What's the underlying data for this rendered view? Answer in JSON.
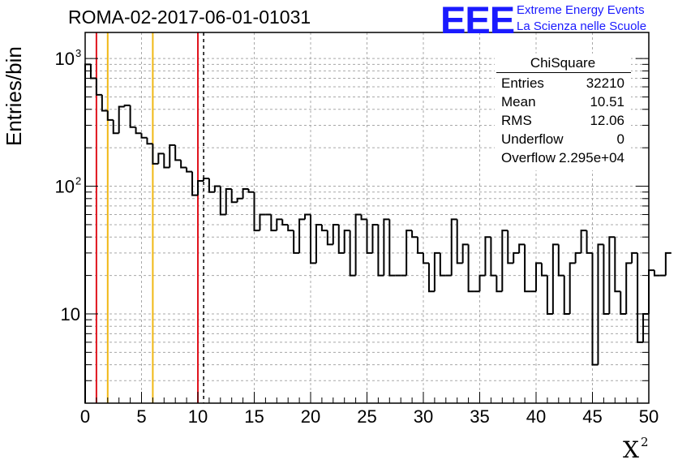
{
  "page_title": "ROMA-02-2017-06-01-01031",
  "logo": {
    "mark": "EEE",
    "line1": "Extreme Energy Events",
    "line2": "La Scienza nelle Scuole",
    "color": "#1a1aff"
  },
  "stats_box": {
    "name": "ChiSquare",
    "rows": [
      {
        "label": "Entries",
        "value": "32210"
      },
      {
        "label": "Mean",
        "value": "10.51"
      },
      {
        "label": "RMS",
        "value": "12.06"
      },
      {
        "label": "Underflow",
        "value": "0"
      },
      {
        "label": "Overflow",
        "value": "2.295e+04"
      }
    ]
  },
  "chart_data": {
    "type": "histogram",
    "title": "ROMA-02-2017-06-01-01031",
    "xlabel": "X",
    "xlabel_superscript": "2",
    "ylabel": "Entries/bin",
    "xlim": [
      0,
      50
    ],
    "ylim": [
      2,
      1600
    ],
    "yscale": "log",
    "grid": true,
    "bin_width": 0.5,
    "x_ticks": [
      "0",
      "5",
      "10",
      "15",
      "20",
      "25",
      "30",
      "35",
      "40",
      "45",
      "50"
    ],
    "y_ticks": [
      {
        "label": "10",
        "exp": "",
        "value": 10
      },
      {
        "label": "10",
        "exp": "2",
        "value": 100
      },
      {
        "label": "10",
        "exp": "3",
        "value": 1000
      }
    ],
    "values": [
      900,
      700,
      520,
      390,
      330,
      260,
      420,
      430,
      290,
      260,
      240,
      215,
      150,
      180,
      140,
      210,
      160,
      140,
      130,
      85,
      110,
      115,
      90,
      100,
      60,
      95,
      75,
      80,
      95,
      90,
      45,
      60,
      60,
      45,
      55,
      50,
      45,
      30,
      55,
      60,
      25,
      50,
      45,
      35,
      50,
      30,
      45,
      20,
      60,
      55,
      30,
      50,
      20,
      55,
      20,
      20,
      20,
      45,
      40,
      30,
      25,
      15,
      30,
      20,
      20,
      55,
      25,
      35,
      15,
      15,
      20,
      40,
      20,
      15,
      45,
      25,
      30,
      35,
      15,
      15,
      25,
      20,
      10,
      35,
      20,
      10,
      25,
      30,
      45,
      30,
      4,
      35,
      10,
      40,
      15,
      10,
      25,
      30,
      6,
      10,
      22,
      20,
      20,
      30
    ],
    "reference_lines": [
      {
        "x": 1,
        "color": "#e0141e",
        "style": "solid"
      },
      {
        "x": 2,
        "color": "#f0b814",
        "style": "solid"
      },
      {
        "x": 6,
        "color": "#f0b814",
        "style": "solid"
      },
      {
        "x": 10,
        "color": "#e0141e",
        "style": "solid"
      },
      {
        "x": 10.51,
        "color": "#000000",
        "style": "dashed"
      }
    ]
  }
}
